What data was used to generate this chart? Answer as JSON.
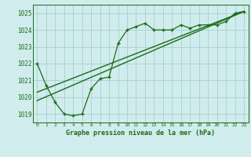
{
  "xlabel": "Graphe pression niveau de la mer (hPa)",
  "bg_color": "#d0ecec",
  "grid_color": "#a8d0d0",
  "line_color": "#1a6b1a",
  "xlim": [
    -0.5,
    23.5
  ],
  "ylim": [
    1018.5,
    1025.5
  ],
  "yticks": [
    1019,
    1020,
    1021,
    1022,
    1023,
    1024,
    1025
  ],
  "xticks": [
    0,
    1,
    2,
    3,
    4,
    5,
    6,
    7,
    8,
    9,
    10,
    11,
    12,
    13,
    14,
    15,
    16,
    17,
    18,
    19,
    20,
    21,
    22,
    23
  ],
  "main_x": [
    0,
    1,
    2,
    3,
    4,
    5,
    6,
    7,
    8,
    9,
    10,
    11,
    12,
    13,
    14,
    15,
    16,
    17,
    18,
    19,
    20,
    21,
    22,
    23
  ],
  "main_y": [
    1022.0,
    1020.7,
    1019.7,
    1019.0,
    1018.9,
    1019.0,
    1020.5,
    1021.1,
    1021.2,
    1023.2,
    1024.0,
    1024.2,
    1024.4,
    1024.0,
    1024.0,
    1024.0,
    1024.3,
    1024.1,
    1024.3,
    1024.3,
    1024.3,
    1024.5,
    1025.0,
    1025.1
  ],
  "line1_x": [
    0,
    23
  ],
  "line1_y": [
    1019.8,
    1025.1
  ],
  "line2_x": [
    0,
    23
  ],
  "line2_y": [
    1020.3,
    1025.1
  ]
}
